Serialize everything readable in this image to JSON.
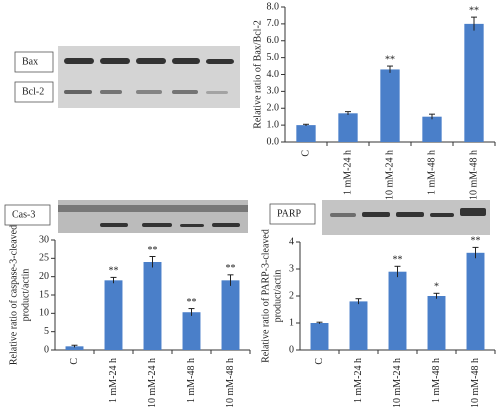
{
  "blots": {
    "top": [
      "Bax",
      "Bcl-2"
    ],
    "caspase": "Cas-3",
    "parp": "PARP"
  },
  "chart_data": [
    {
      "type": "bar",
      "y_label": [
        "Relative ratio of Bax/Bcl-2"
      ],
      "categories": [
        "C",
        "1 mM-24 h",
        "10 mM-24 h",
        "1 mM-48 h",
        "10 mM-48 h"
      ],
      "values": [
        1.0,
        1.7,
        4.3,
        1.5,
        7.0
      ],
      "errors": [
        0.05,
        0.1,
        0.2,
        0.15,
        0.4
      ],
      "significance": [
        null,
        null,
        "**",
        null,
        "**"
      ],
      "color": "#4a7fc9",
      "ylim": [
        0,
        8
      ],
      "yticks": [
        {
          "value": 0,
          "label": "0.0"
        },
        {
          "value": 1,
          "label": "1.0"
        },
        {
          "value": 2,
          "label": "2.0"
        },
        {
          "value": 3,
          "label": "3.0"
        },
        {
          "value": 4,
          "label": "4.0"
        },
        {
          "value": 5,
          "label": "5.0"
        },
        {
          "value": 6,
          "label": "6.0"
        },
        {
          "value": 7,
          "label": "7.0"
        },
        {
          "value": 8,
          "label": "8.0"
        }
      ]
    },
    {
      "type": "bar",
      "y_label": [
        "Relative ratio of caspase-3-cleaved",
        "product/actin"
      ],
      "categories": [
        "C",
        "1 mM-24 h",
        "10 mM-24 h",
        "1 mM-48 h",
        "10 mM-48 h"
      ],
      "values": [
        1,
        19,
        24,
        10.3,
        19
      ],
      "errors": [
        0.3,
        0.8,
        1.5,
        1,
        1.5
      ],
      "significance": [
        null,
        "**",
        "**",
        "**",
        "**"
      ],
      "color": "#4a7fc9",
      "ylim": [
        0,
        30
      ],
      "yticks": [
        0,
        5,
        10,
        15,
        20,
        25,
        30
      ]
    },
    {
      "type": "bar",
      "y_label": [
        "Relative ratio of PARP-3-cleaved",
        "product/actin"
      ],
      "categories": [
        "C",
        "1 mM-24 h",
        "10 mM-24 h",
        "1 mM-48 h",
        "10 mM-48 h"
      ],
      "values": [
        1,
        1.8,
        2.9,
        2.0,
        3.6
      ],
      "errors": [
        0.03,
        0.1,
        0.2,
        0.1,
        0.2
      ],
      "significance": [
        null,
        null,
        "**",
        "*",
        "**"
      ],
      "color": "#4a7fc9",
      "ylim": [
        0,
        4
      ],
      "yticks": [
        0,
        1,
        2,
        3,
        4
      ]
    }
  ]
}
